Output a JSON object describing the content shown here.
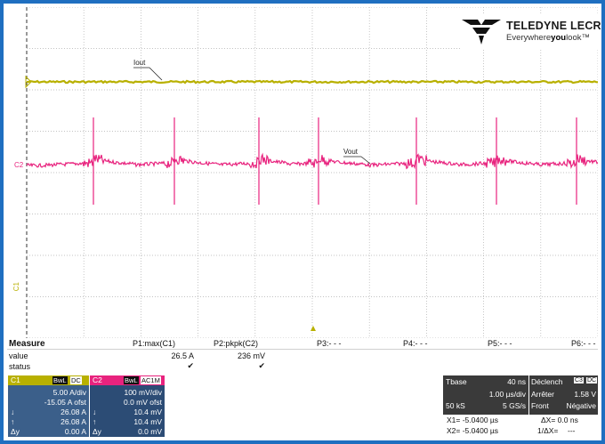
{
  "logo": {
    "brand": "TELEDYNE LECROY",
    "tag_pre": "Everywhere",
    "tag_bold": "you",
    "tag_post": "look",
    "tm": "™"
  },
  "waveform_labels": {
    "iout": "Iout",
    "vout": "Vout"
  },
  "channel_markers": {
    "c1": "C1",
    "c2": "C2"
  },
  "colors": {
    "c1": "#b8b000",
    "c2": "#e8237e",
    "grid": "#9a9a9a",
    "panel_dark": "#3a3a3a",
    "panel_c1": "#3b5f8a",
    "panel_c2": "#2c4c75",
    "frame": "#1f6fc0"
  },
  "measure": {
    "title": "Measure",
    "row_value": "value",
    "row_status": "status",
    "columns": [
      {
        "label": "P1:max(C1)",
        "value": "26.5 A",
        "status": "✔"
      },
      {
        "label": "P2:pkpk(C2)",
        "value": "236 mV",
        "status": "✔"
      },
      {
        "label": "P3:- - -",
        "value": "",
        "status": ""
      },
      {
        "label": "P4:- - -",
        "value": "",
        "status": ""
      },
      {
        "label": "P5:- - -",
        "value": "",
        "status": ""
      },
      {
        "label": "P6:- - -",
        "value": "",
        "status": ""
      }
    ]
  },
  "c1": {
    "name": "C1",
    "badge1": "BwL",
    "badge2": "DC",
    "scale": "5.00 A/div",
    "offset": "-15.05 A ofst",
    "cursor1_sym": "↓",
    "cursor1": "26.08 A",
    "cursor2_sym": "↑",
    "cursor2": "26.08 A",
    "delta_sym": "Δy",
    "delta": "0.00 A"
  },
  "c2": {
    "name": "C2",
    "badge1": "BwL",
    "badge2": "AC1M",
    "scale": "100 mV/div",
    "offset": "0.0 mV ofst",
    "cursor1_sym": "↓",
    "cursor1": "10.4 mV",
    "cursor2_sym": "↑",
    "cursor2": "10.4 mV",
    "delta_sym": "Δy",
    "delta": "0.0 mV"
  },
  "timebase": {
    "label": "Tbase",
    "delay": "40 ns",
    "per_div": "1.00 µs/div",
    "samples": "50 kS",
    "rate": "5 GS/s"
  },
  "trigger": {
    "label": "Déclench",
    "src": "C3",
    "coupling": "DC",
    "mode": "Arrêter",
    "level": "1.58 V",
    "type": "Front",
    "slope": "Négative"
  },
  "cursors": {
    "x1": "X1=  -5.0400 µs",
    "dx": "ΔX=  0.0 ns",
    "x2": "X2=  -5.0400 µs",
    "inv_dx": "1/ΔX=",
    "inv_dx_val": "---"
  }
}
